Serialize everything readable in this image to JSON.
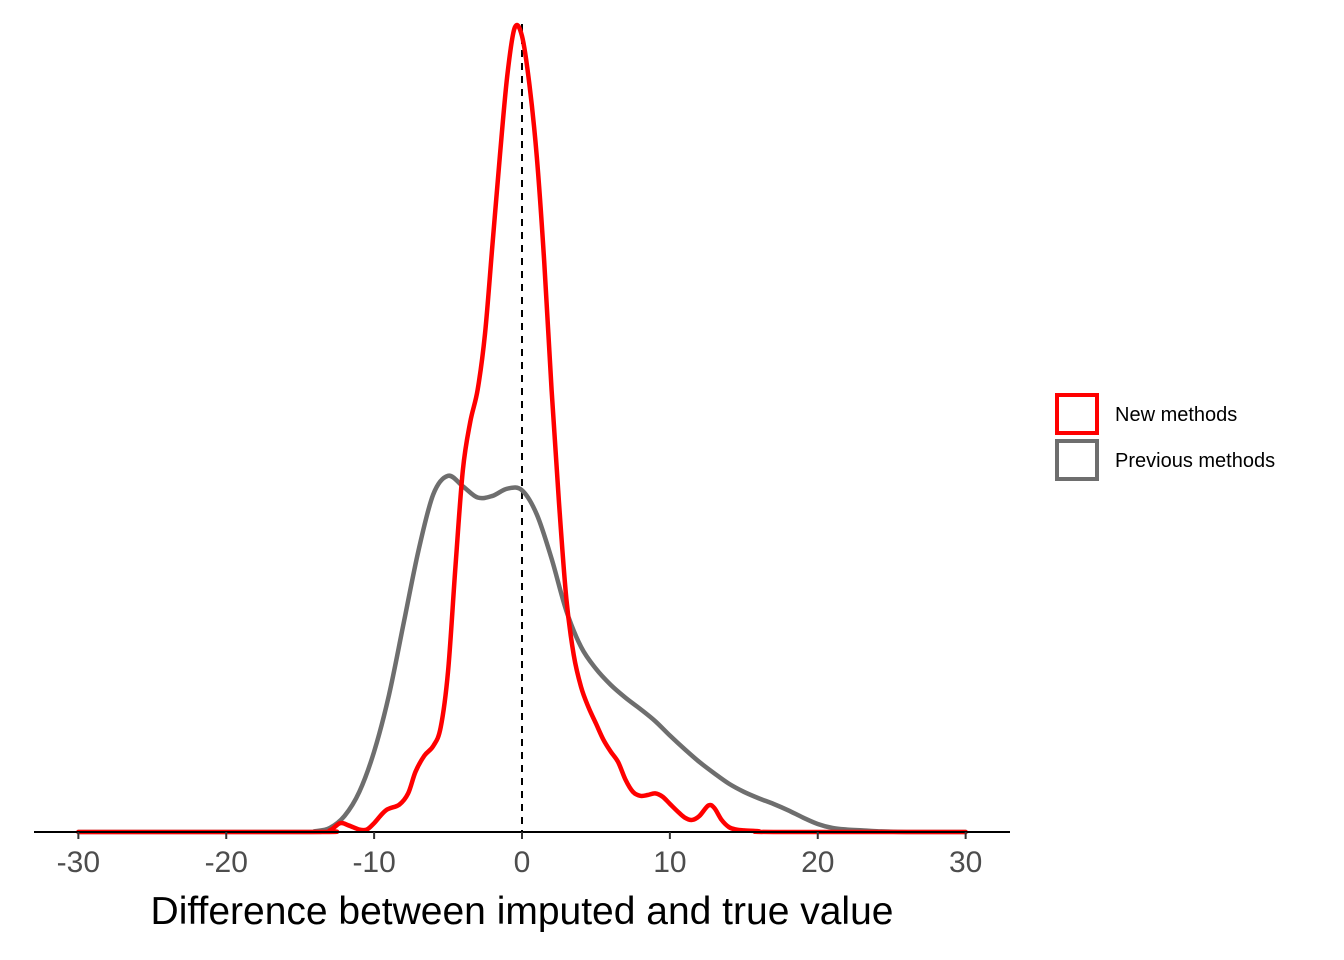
{
  "chart_data": {
    "type": "line",
    "subtype": "density",
    "title": "",
    "xlabel": "Difference between imputed and true value",
    "ylabel": "",
    "xlim": [
      -33,
      33
    ],
    "ylim": [
      0,
      1
    ],
    "x_ticks": [
      -30,
      -20,
      -10,
      0,
      10,
      20,
      30
    ],
    "x_tick_labels": [
      "-30",
      "-20",
      "-10",
      "0",
      "10",
      "20",
      "30"
    ],
    "show_y_axis": false,
    "grid": false,
    "legend_position": "right",
    "reference_line": {
      "x": 0,
      "style": "dashed",
      "color": "#000000"
    },
    "series": [
      {
        "name": "New methods",
        "color": "#ff0000",
        "points": [
          [
            -30,
            0
          ],
          [
            -14,
            0
          ],
          [
            -13,
            0.002
          ],
          [
            -12.3,
            0.011
          ],
          [
            -11.7,
            0.008
          ],
          [
            -11,
            0.003
          ],
          [
            -10.5,
            0.003
          ],
          [
            -10,
            0.011
          ],
          [
            -9.2,
            0.027
          ],
          [
            -8.3,
            0.034
          ],
          [
            -7.7,
            0.048
          ],
          [
            -7.2,
            0.075
          ],
          [
            -6.6,
            0.095
          ],
          [
            -6,
            0.107
          ],
          [
            -5.5,
            0.13
          ],
          [
            -5,
            0.2
          ],
          [
            -4.5,
            0.33
          ],
          [
            -4,
            0.45
          ],
          [
            -3.5,
            0.51
          ],
          [
            -3,
            0.55
          ],
          [
            -2.5,
            0.62
          ],
          [
            -2,
            0.73
          ],
          [
            -1.5,
            0.84
          ],
          [
            -1,
            0.94
          ],
          [
            -0.5,
            1.0
          ],
          [
            0,
            0.99
          ],
          [
            0.5,
            0.93
          ],
          [
            1,
            0.84
          ],
          [
            1.5,
            0.71
          ],
          [
            2,
            0.55
          ],
          [
            2.5,
            0.41
          ],
          [
            3,
            0.29
          ],
          [
            3.5,
            0.22
          ],
          [
            4,
            0.18
          ],
          [
            4.5,
            0.155
          ],
          [
            5,
            0.135
          ],
          [
            5.5,
            0.115
          ],
          [
            6,
            0.1
          ],
          [
            6.5,
            0.087
          ],
          [
            7,
            0.065
          ],
          [
            7.5,
            0.05
          ],
          [
            8,
            0.045
          ],
          [
            8.5,
            0.046
          ],
          [
            9,
            0.048
          ],
          [
            9.5,
            0.044
          ],
          [
            10,
            0.035
          ],
          [
            10.5,
            0.026
          ],
          [
            11,
            0.018
          ],
          [
            11.5,
            0.015
          ],
          [
            12,
            0.02
          ],
          [
            12.6,
            0.033
          ],
          [
            13,
            0.03
          ],
          [
            13.5,
            0.015
          ],
          [
            14,
            0.006
          ],
          [
            14.5,
            0.003
          ],
          [
            15,
            0.002
          ],
          [
            16,
            0.001
          ],
          [
            17,
            0
          ],
          [
            30,
            0
          ]
        ]
      },
      {
        "name": "Previous methods",
        "color": "#6e6e6e",
        "points": [
          [
            -30,
            0
          ],
          [
            -15,
            0
          ],
          [
            -14,
            0.001
          ],
          [
            -13,
            0.005
          ],
          [
            -12,
            0.02
          ],
          [
            -11,
            0.05
          ],
          [
            -10,
            0.1
          ],
          [
            -9,
            0.17
          ],
          [
            -8,
            0.26
          ],
          [
            -7,
            0.35
          ],
          [
            -6,
            0.42
          ],
          [
            -5,
            0.443
          ],
          [
            -4,
            0.43
          ],
          [
            -3,
            0.416
          ],
          [
            -2,
            0.418
          ],
          [
            -1,
            0.427
          ],
          [
            0,
            0.425
          ],
          [
            1,
            0.395
          ],
          [
            2,
            0.34
          ],
          [
            3,
            0.275
          ],
          [
            4,
            0.23
          ],
          [
            5,
            0.203
          ],
          [
            6,
            0.183
          ],
          [
            7,
            0.167
          ],
          [
            8,
            0.153
          ],
          [
            9,
            0.138
          ],
          [
            10,
            0.12
          ],
          [
            11,
            0.103
          ],
          [
            12,
            0.087
          ],
          [
            13,
            0.073
          ],
          [
            14,
            0.06
          ],
          [
            15,
            0.05
          ],
          [
            16,
            0.042
          ],
          [
            17,
            0.035
          ],
          [
            18,
            0.027
          ],
          [
            19,
            0.018
          ],
          [
            20,
            0.01
          ],
          [
            21,
            0.005
          ],
          [
            22,
            0.003
          ],
          [
            23,
            0.002
          ],
          [
            24,
            0.001
          ],
          [
            26,
            0
          ],
          [
            30,
            0
          ]
        ]
      }
    ]
  }
}
